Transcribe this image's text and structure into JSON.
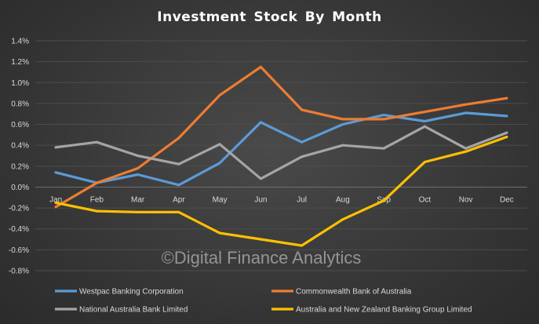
{
  "chart_data": {
    "type": "line",
    "title": "Investment Stock By Month",
    "xlabel": "",
    "ylabel": "",
    "categories": [
      "Jan",
      "Feb",
      "Mar",
      "Apr",
      "May",
      "Jun",
      "Jul",
      "Aug",
      "Sep",
      "Oct",
      "Nov",
      "Dec"
    ],
    "ylim": [
      -0.8,
      1.4
    ],
    "yticks": [
      "1.4%",
      "1.2%",
      "1.0%",
      "0.8%",
      "0.6%",
      "0.4%",
      "0.2%",
      "0.0%",
      "-0.2%",
      "-0.4%",
      "-0.6%",
      "-0.8%"
    ],
    "grid": true,
    "legend_position": "bottom",
    "series": [
      {
        "name": "Westpac Banking Corporation",
        "color": "#5b9bd5",
        "values": [
          0.14,
          0.04,
          0.12,
          0.02,
          0.23,
          0.62,
          0.43,
          0.6,
          0.69,
          0.63,
          0.71,
          0.68
        ]
      },
      {
        "name": "Commonwealth Bank of Australia",
        "color": "#ed7d31",
        "values": [
          -0.19,
          0.04,
          0.18,
          0.47,
          0.88,
          1.15,
          0.74,
          0.65,
          0.65,
          0.72,
          0.79,
          0.85
        ]
      },
      {
        "name": "National Australia Bank Limited",
        "color": "#a5a5a5",
        "values": [
          0.38,
          0.43,
          0.3,
          0.22,
          0.41,
          0.08,
          0.29,
          0.4,
          0.37,
          0.58,
          0.37,
          0.52
        ]
      },
      {
        "name": "Australia and New Zealand Banking Group Limited",
        "color": "#ffc000",
        "values": [
          -0.15,
          -0.23,
          -0.24,
          -0.24,
          -0.44,
          -0.5,
          -0.56,
          -0.31,
          -0.13,
          0.24,
          0.34,
          0.48
        ]
      }
    ],
    "watermark": "©Digital Finance Analytics"
  }
}
